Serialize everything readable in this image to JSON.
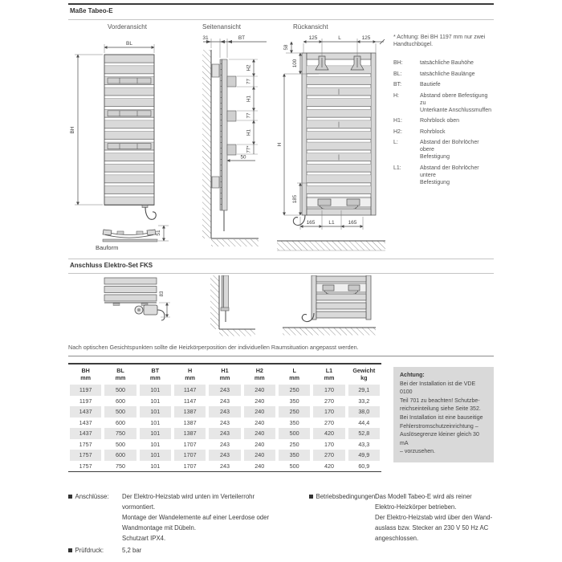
{
  "sections": {
    "dims_title": "Maße Tabeo-E",
    "fks_title": "Anschluss Elektro-Set FKS",
    "position_note": "Nach optischen Gesichtspunkten sollte die Heizkörperposition der individuellen Raumsituation angepasst werden."
  },
  "views": {
    "front": "Vorderansicht",
    "side": "Seitenansicht",
    "rear": "Rückansicht"
  },
  "diagrams": {
    "front": {
      "bl": "BL",
      "bh": "BH",
      "d51": "51",
      "bauform": "Bauform"
    },
    "side": {
      "d31": "31",
      "bt": "BT",
      "h2": "H2",
      "d77_1": "77",
      "h1_1": "H1",
      "d77_2": "77",
      "h1_2": "H1",
      "d77_3": "77*",
      "d50": "50"
    },
    "rear": {
      "d58": "58",
      "d125_1": "125",
      "l": "L",
      "d125_2": "125",
      "d100": "100",
      "h": "H",
      "d185": "185",
      "d165_1": "165",
      "l1": "L1",
      "d165_2": "165"
    },
    "fks": {
      "d83": "83"
    }
  },
  "legend": {
    "note": [
      "* Achtung: Bei BH 1197 mm nur zwei",
      "Handtuchbügel."
    ],
    "items": [
      {
        "key": "BH:",
        "desc": "tatsächliche Bauhöhe"
      },
      {
        "key": "BL:",
        "desc": "tatsächliche Baulänge"
      },
      {
        "key": "BT:",
        "desc": "Bautiefe"
      },
      {
        "key": "H:",
        "desc": [
          "Abstand obere Befestigung zu",
          "Unterkante Anschlussmuffen"
        ]
      },
      {
        "key": "H1:",
        "desc": "Rohrblock oben"
      },
      {
        "key": "H2:",
        "desc": "Rohrblock"
      },
      {
        "key": "L:",
        "desc": [
          "Abstand der Bohrlöcher obere",
          "Befestigung"
        ]
      },
      {
        "key": "L1:",
        "desc": [
          "Abstand der Bohrlöcher untere",
          "Befestigung"
        ]
      }
    ]
  },
  "table": {
    "headers": [
      {
        "label": "BH",
        "unit": "mm"
      },
      {
        "label": "BL",
        "unit": "mm"
      },
      {
        "label": "BT",
        "unit": "mm"
      },
      {
        "label": "H",
        "unit": "mm"
      },
      {
        "label": "H1",
        "unit": "mm"
      },
      {
        "label": "H2",
        "unit": "mm"
      },
      {
        "label": "L",
        "unit": "mm"
      },
      {
        "label": "L1",
        "unit": "mm"
      },
      {
        "label": "Gewicht",
        "unit": "kg"
      }
    ],
    "rows": [
      [
        "1197",
        "500",
        "101",
        "1147",
        "243",
        "240",
        "250",
        "170",
        "29,1"
      ],
      [
        "1197",
        "600",
        "101",
        "1147",
        "243",
        "240",
        "350",
        "270",
        "33,2"
      ],
      [
        "1437",
        "500",
        "101",
        "1387",
        "243",
        "240",
        "250",
        "170",
        "38,0"
      ],
      [
        "1437",
        "600",
        "101",
        "1387",
        "243",
        "240",
        "350",
        "270",
        "44,4"
      ],
      [
        "1437",
        "750",
        "101",
        "1387",
        "243",
        "240",
        "500",
        "420",
        "52,8"
      ],
      [
        "1757",
        "500",
        "101",
        "1707",
        "243",
        "240",
        "250",
        "170",
        "43,3"
      ],
      [
        "1757",
        "600",
        "101",
        "1707",
        "243",
        "240",
        "350",
        "270",
        "49,9"
      ],
      [
        "1757",
        "750",
        "101",
        "1707",
        "243",
        "240",
        "500",
        "420",
        "60,9"
      ]
    ]
  },
  "warning_box": {
    "title": "Achtung:",
    "lines": [
      "Bei der Installation ist die VDE 0100",
      "Teil 701 zu beachten! Schutzbe-",
      "reichseinteilung siehe Seite 352.",
      "Bei Installation ist eine bauseitige",
      "Fehlerstromschutzeinrichtung –",
      "Auslösegrenze kleiner gleich 30 mA",
      "– vorzusehen."
    ]
  },
  "footer": {
    "anschluesse_label": "Anschlüsse:",
    "anschluesse_lines": [
      "Der Elektro-Heizstab wird unten im Verteilerrohr",
      "vormontiert.",
      "Montage der Wandelemente auf einer Leerdose oder",
      "Wandmontage mit Dübeln.",
      "Schutzart IPX4."
    ],
    "pruefdruck_label": "Prüfdruck:",
    "pruefdruck_value": "5,2 bar",
    "betrieb_label": "Betriebsbedingungen:",
    "betrieb_lines": [
      "Das Modell Tabeo-E wird als reiner",
      "Elektro-Heizkörper betrieben.",
      "Der Elektro-Heizstab wird über den Wand-",
      "auslass bzw. Stecker an 230 V 50 Hz AC",
      "angeschlossen."
    ]
  }
}
